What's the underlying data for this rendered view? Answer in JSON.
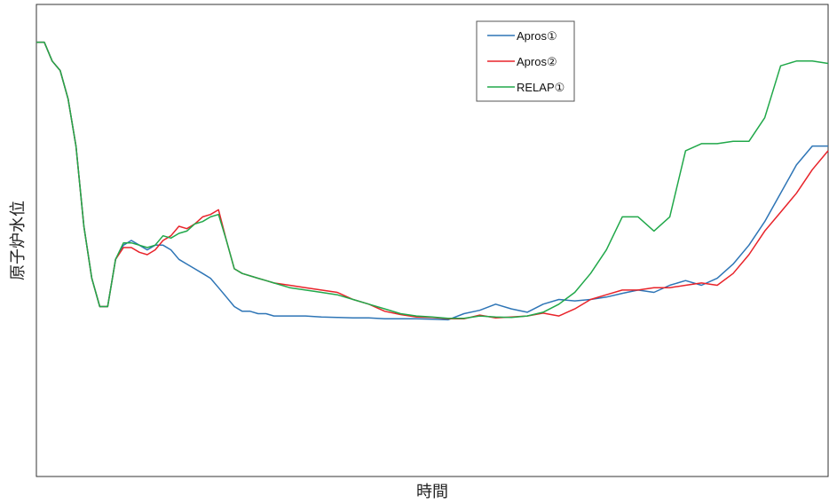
{
  "chart_data": {
    "type": "line",
    "title": "",
    "xlabel": "時間",
    "ylabel": "原子炉水位",
    "x_ticks_shown": false,
    "y_ticks_shown": false,
    "grid": false,
    "legend_position": "top-center",
    "xlim": [
      0,
      100
    ],
    "ylim": [
      0,
      100
    ],
    "series": [
      {
        "name": "Apros①",
        "color": "#2e75b6",
        "x": [
          0,
          1,
          2,
          3,
          4,
          5,
          6,
          7,
          8,
          9,
          10,
          11,
          12,
          13,
          14,
          15,
          16,
          17,
          18,
          19,
          20,
          21,
          22,
          23,
          24,
          25,
          26,
          27,
          28,
          29,
          30,
          32,
          34,
          36,
          38,
          40,
          42,
          44,
          46,
          48,
          50,
          52,
          54,
          56,
          58,
          60,
          62,
          64,
          66,
          68,
          70,
          72,
          74,
          76,
          78,
          80,
          82,
          84,
          86,
          88,
          90,
          92,
          94,
          96,
          98,
          100
        ],
        "values": [
          92,
          92,
          88,
          86,
          80,
          70,
          53,
          42,
          36,
          36,
          46,
          49,
          50,
          49,
          48,
          49,
          49,
          48,
          46,
          45,
          44,
          43,
          42,
          40,
          38,
          36,
          35,
          35,
          34.5,
          34.5,
          34,
          34,
          34,
          33.8,
          33.7,
          33.6,
          33.6,
          33.4,
          33.4,
          33.4,
          33.3,
          33.2,
          34.5,
          35.2,
          36.5,
          35.5,
          34.8,
          36.5,
          37.5,
          37.2,
          37.5,
          38,
          38.8,
          39.5,
          39,
          40.5,
          41.5,
          40.5,
          42,
          45,
          49,
          54,
          60,
          66,
          70,
          70
        ]
      },
      {
        "name": "Apros②",
        "color": "#e8232a",
        "x": [
          0,
          1,
          2,
          3,
          4,
          5,
          6,
          7,
          8,
          9,
          10,
          11,
          12,
          13,
          14,
          15,
          16,
          17,
          18,
          19,
          20,
          21,
          22,
          23,
          24,
          25,
          26,
          27,
          28,
          29,
          30,
          32,
          34,
          36,
          38,
          40,
          42,
          44,
          46,
          48,
          50,
          52,
          54,
          56,
          58,
          60,
          62,
          64,
          66,
          68,
          70,
          72,
          74,
          76,
          78,
          80,
          82,
          84,
          86,
          88,
          90,
          92,
          94,
          96,
          98,
          100
        ],
        "values": [
          92,
          92,
          88,
          86,
          80,
          70,
          53,
          42,
          36,
          36,
          46,
          48.5,
          48.5,
          47.5,
          47,
          48,
          50,
          51,
          53,
          52.5,
          53.5,
          55,
          55.5,
          56.5,
          50,
          44,
          43,
          42.5,
          42,
          41.5,
          41,
          40.5,
          40,
          39.5,
          39,
          37.5,
          36.5,
          35,
          34.3,
          33.8,
          33.7,
          33.4,
          33.4,
          34.2,
          33.6,
          33.8,
          34,
          34.6,
          34,
          35.5,
          37.5,
          38.5,
          39.5,
          39.5,
          40,
          40,
          40.5,
          41,
          40.5,
          43,
          47,
          52,
          56,
          60,
          65,
          69
        ]
      },
      {
        "name": "RELAP①",
        "color": "#21a84a",
        "x": [
          0,
          1,
          2,
          3,
          4,
          5,
          6,
          7,
          8,
          9,
          10,
          11,
          12,
          13,
          14,
          15,
          16,
          17,
          18,
          19,
          20,
          21,
          22,
          23,
          24,
          25,
          26,
          27,
          28,
          29,
          30,
          32,
          34,
          36,
          38,
          40,
          42,
          44,
          46,
          48,
          50,
          52,
          54,
          56,
          58,
          60,
          62,
          64,
          66,
          68,
          70,
          72,
          74,
          76,
          78,
          80,
          82,
          84,
          86,
          88,
          90,
          92,
          94,
          96,
          98,
          100
        ],
        "values": [
          92,
          92,
          88,
          86,
          80,
          70,
          53,
          42,
          36,
          36,
          46,
          49.5,
          49.5,
          49,
          48.5,
          49,
          51,
          50.5,
          51.5,
          52,
          53.5,
          54,
          55,
          55.5,
          50,
          44,
          43,
          42.5,
          42,
          41.5,
          41,
          40,
          39.5,
          39,
          38.5,
          37.5,
          36.5,
          35.5,
          34.5,
          34,
          33.8,
          33.5,
          33.5,
          34,
          33.8,
          33.7,
          34,
          34.8,
          36.5,
          39,
          43,
          48,
          55,
          55,
          52,
          55,
          69,
          70.5,
          70.5,
          71,
          71,
          76,
          87,
          88,
          88,
          87.5
        ]
      }
    ]
  }
}
